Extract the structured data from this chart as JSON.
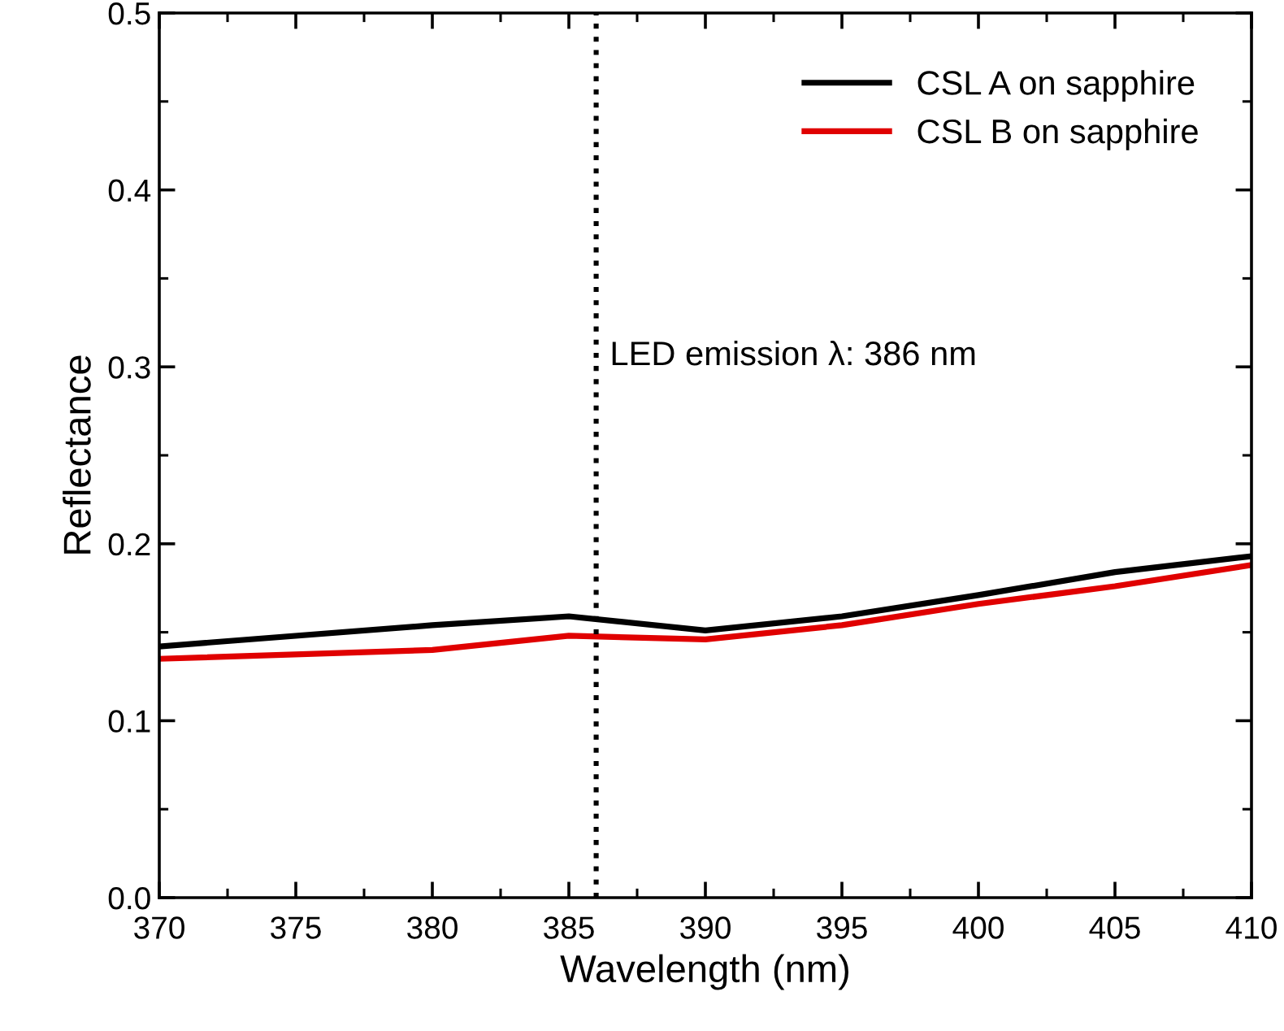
{
  "chart_data": {
    "type": "line",
    "xlabel": "Wavelength (nm)",
    "ylabel": "Reflectance",
    "x": [
      370,
      380,
      385,
      390,
      395,
      400,
      405,
      410
    ],
    "series": [
      {
        "name": "CSL A on sapphire",
        "color": "#000000",
        "values": [
          0.142,
          0.154,
          0.159,
          0.151,
          0.159,
          0.171,
          0.184,
          0.193
        ]
      },
      {
        "name": "CSL B on sapphire",
        "color": "#e00000",
        "values": [
          0.135,
          0.14,
          0.148,
          0.146,
          0.154,
          0.166,
          0.176,
          0.188
        ]
      }
    ],
    "xlim": [
      370,
      410
    ],
    "xticks": [
      370,
      375,
      380,
      385,
      390,
      395,
      400,
      405,
      410
    ],
    "ylim": [
      0.0,
      0.5
    ],
    "yticks": [
      {
        "value": 0.0,
        "label": "0.0"
      },
      {
        "value": 0.1,
        "label": "0.1"
      },
      {
        "value": 0.2,
        "label": "0.2"
      },
      {
        "value": 0.3,
        "label": "0.3"
      },
      {
        "value": 0.4,
        "label": "0.4"
      },
      {
        "value": 0.5,
        "label": "0.5"
      }
    ],
    "ref_lines": [
      {
        "axis": "x",
        "value": 386,
        "label": "LED emission λ: 386 nm",
        "color": "#000000",
        "line_style": "dotted"
      }
    ],
    "grid": false,
    "legend": "top right",
    "marker": "none",
    "line_style": "solid"
  }
}
